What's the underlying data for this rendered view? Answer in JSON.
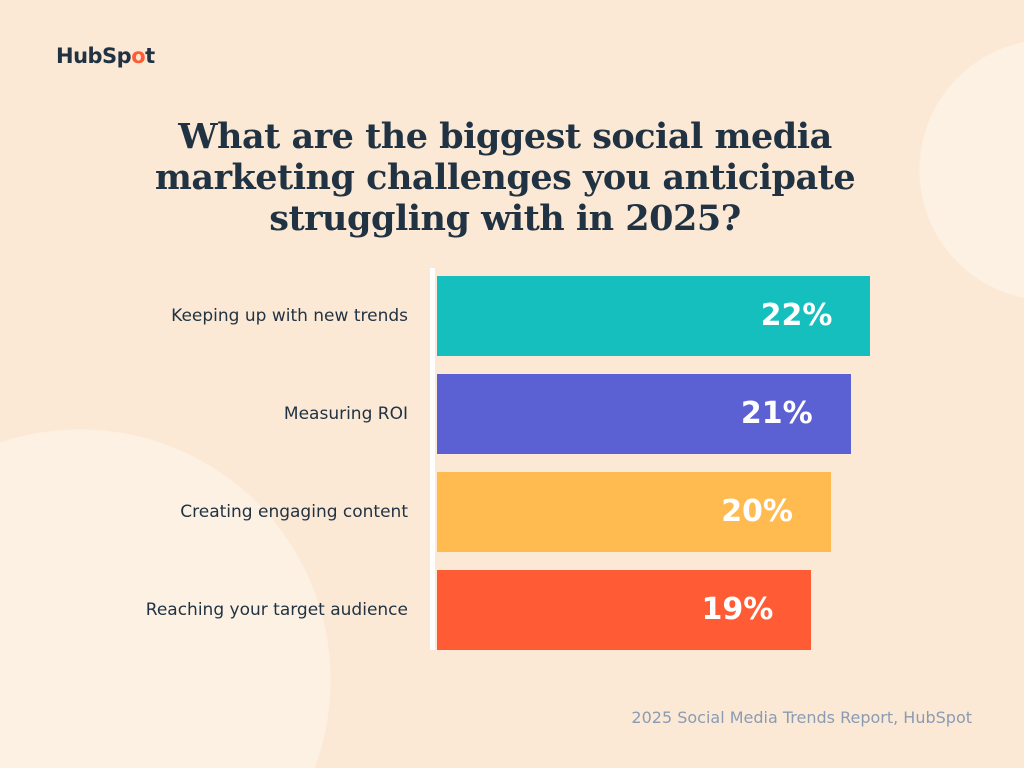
{
  "brand": {
    "logo_text": "HubSpot"
  },
  "chart_data": {
    "type": "bar",
    "orientation": "horizontal",
    "title": "What are the biggest social media marketing challenges you anticipate struggling with in 2025?",
    "categories": [
      "Keeping up with new trends",
      "Measuring ROI",
      "Creating engaging content",
      "Reaching your target audience"
    ],
    "values": [
      22,
      21,
      20,
      19
    ],
    "value_labels": [
      "22%",
      "21%",
      "20%",
      "19%"
    ],
    "colors": [
      "#14bfbe",
      "#5b60d3",
      "#ffbb4f",
      "#ff5c35"
    ],
    "unit": "%",
    "grid": false
  },
  "source": "2025 Social Media Trends Report, HubSpot"
}
